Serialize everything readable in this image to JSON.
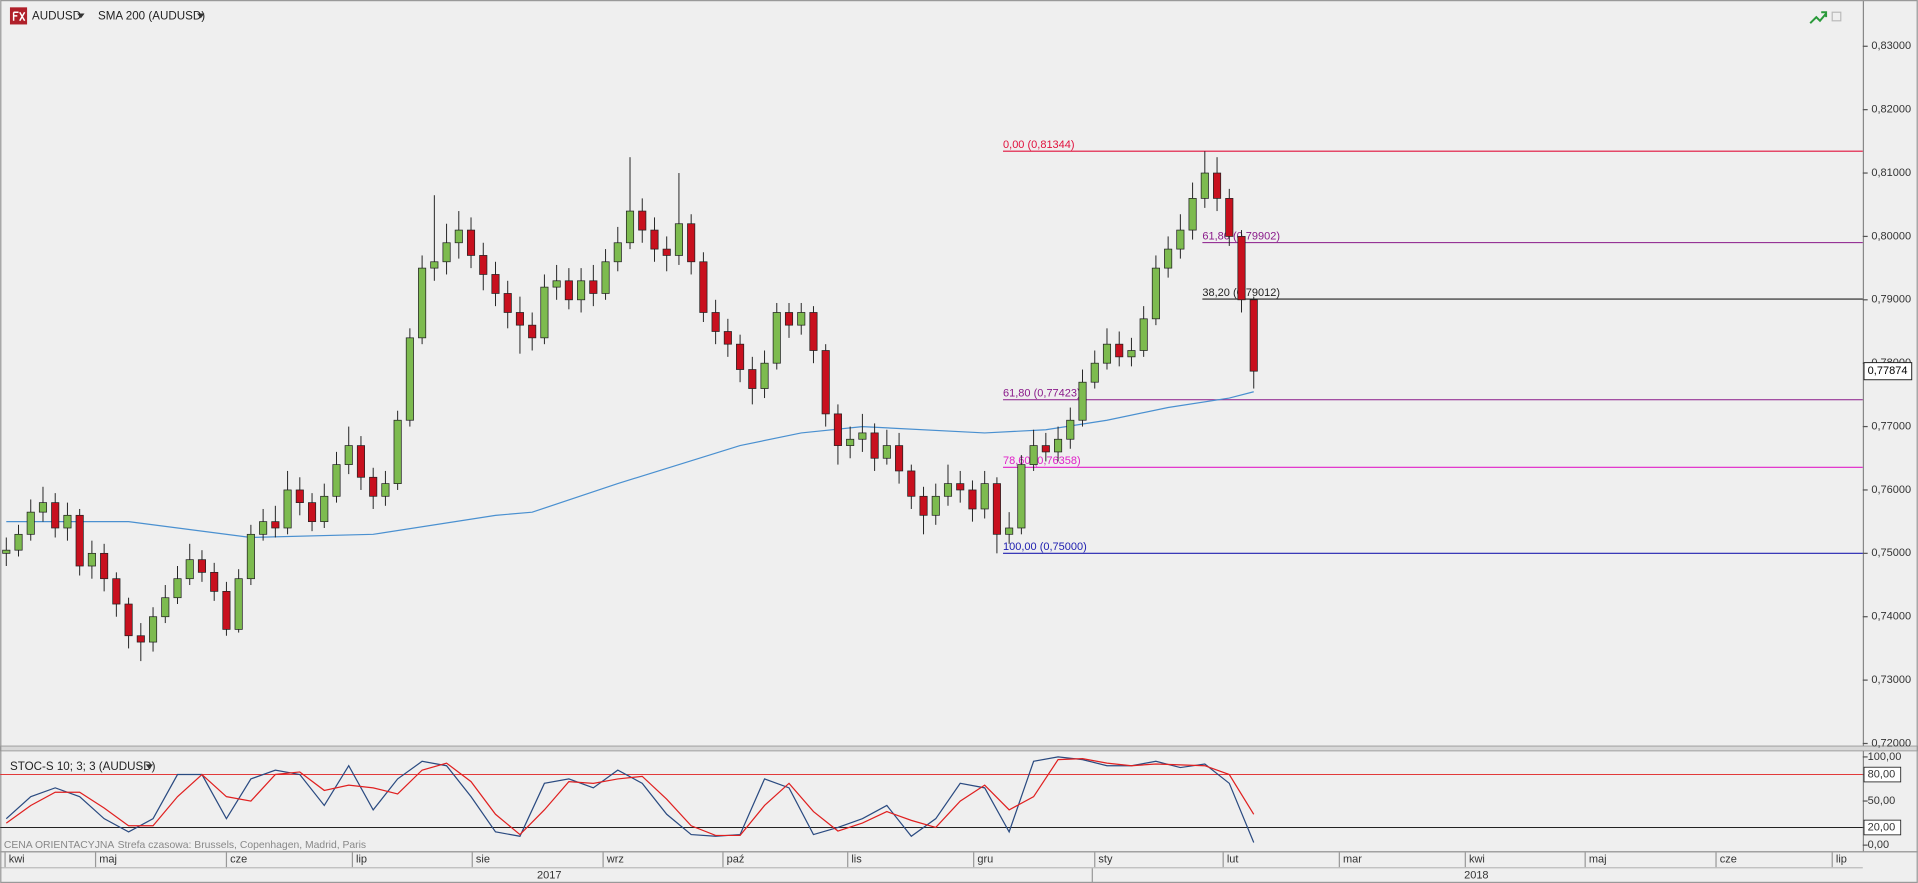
{
  "chart_data": [
    {
      "type": "candlestick",
      "xlim": [
        -0.5,
        151.8
      ],
      "ylim": [
        0.7196,
        0.8373
      ],
      "yticks": [
        {
          "value": 0.72,
          "label": "0,72000"
        },
        {
          "value": 0.73,
          "label": "0,73000"
        },
        {
          "value": 0.74,
          "label": "0,74000"
        },
        {
          "value": 0.75,
          "label": "0,75000"
        },
        {
          "value": 0.76,
          "label": "0,76000"
        },
        {
          "value": 0.77,
          "label": "0,77000"
        },
        {
          "value": 0.78,
          "label": "0,78000"
        },
        {
          "value": 0.79,
          "label": "0,79000"
        },
        {
          "value": 0.8,
          "label": "0,80000"
        },
        {
          "value": 0.81,
          "label": "0,81000"
        },
        {
          "value": 0.82,
          "label": "0,82000"
        },
        {
          "value": 0.83,
          "label": "0,83000"
        }
      ],
      "up_color": "#7dbb4f",
      "down_color": "#c8101e",
      "series": [
        {
          "name": "AUDUSD",
          "ohlc": [
            [
              0.75,
              0.7525,
              0.748,
              0.7505
            ],
            [
              0.7505,
              0.7545,
              0.7495,
              0.753
            ],
            [
              0.753,
              0.7585,
              0.752,
              0.7565
            ],
            [
              0.7565,
              0.7605,
              0.755,
              0.758
            ],
            [
              0.758,
              0.7595,
              0.7525,
              0.754
            ],
            [
              0.754,
              0.758,
              0.752,
              0.756
            ],
            [
              0.756,
              0.757,
              0.7465,
              0.748
            ],
            [
              0.748,
              0.752,
              0.746,
              0.75
            ],
            [
              0.75,
              0.7515,
              0.744,
              0.746
            ],
            [
              0.746,
              0.747,
              0.74,
              0.742
            ],
            [
              0.742,
              0.743,
              0.735,
              0.737
            ],
            [
              0.737,
              0.739,
              0.733,
              0.736
            ],
            [
              0.736,
              0.7415,
              0.7345,
              0.74
            ],
            [
              0.74,
              0.745,
              0.739,
              0.743
            ],
            [
              0.743,
              0.748,
              0.742,
              0.746
            ],
            [
              0.746,
              0.7515,
              0.745,
              0.749
            ],
            [
              0.749,
              0.7505,
              0.7455,
              0.747
            ],
            [
              0.747,
              0.7485,
              0.7425,
              0.744
            ],
            [
              0.744,
              0.7455,
              0.737,
              0.738
            ],
            [
              0.738,
              0.7475,
              0.7375,
              0.746
            ],
            [
              0.746,
              0.7545,
              0.745,
              0.753
            ],
            [
              0.753,
              0.757,
              0.752,
              0.755
            ],
            [
              0.755,
              0.7575,
              0.7525,
              0.754
            ],
            [
              0.754,
              0.763,
              0.753,
              0.76
            ],
            [
              0.76,
              0.762,
              0.756,
              0.758
            ],
            [
              0.758,
              0.7595,
              0.7535,
              0.755
            ],
            [
              0.755,
              0.761,
              0.754,
              0.759
            ],
            [
              0.759,
              0.766,
              0.758,
              0.764
            ],
            [
              0.764,
              0.77,
              0.7625,
              0.767
            ],
            [
              0.767,
              0.7685,
              0.76,
              0.762
            ],
            [
              0.762,
              0.7635,
              0.757,
              0.759
            ],
            [
              0.759,
              0.763,
              0.7575,
              0.761
            ],
            [
              0.761,
              0.7725,
              0.76,
              0.771
            ],
            [
              0.771,
              0.7855,
              0.77,
              0.784
            ],
            [
              0.784,
              0.797,
              0.783,
              0.795
            ],
            [
              0.795,
              0.8065,
              0.793,
              0.796
            ],
            [
              0.796,
              0.802,
              0.794,
              0.799
            ],
            [
              0.799,
              0.804,
              0.7965,
              0.801
            ],
            [
              0.801,
              0.803,
              0.795,
              0.797
            ],
            [
              0.797,
              0.799,
              0.7915,
              0.794
            ],
            [
              0.794,
              0.796,
              0.789,
              0.791
            ],
            [
              0.791,
              0.793,
              0.7855,
              0.788
            ],
            [
              0.788,
              0.7905,
              0.7815,
              0.786
            ],
            [
              0.786,
              0.788,
              0.782,
              0.784
            ],
            [
              0.784,
              0.794,
              0.783,
              0.792
            ],
            [
              0.792,
              0.7955,
              0.79,
              0.793
            ],
            [
              0.793,
              0.795,
              0.7885,
              0.79
            ],
            [
              0.79,
              0.795,
              0.788,
              0.793
            ],
            [
              0.793,
              0.7955,
              0.789,
              0.791
            ],
            [
              0.791,
              0.798,
              0.79,
              0.796
            ],
            [
              0.796,
              0.8015,
              0.7945,
              0.799
            ],
            [
              0.799,
              0.8125,
              0.798,
              0.804
            ],
            [
              0.804,
              0.806,
              0.799,
              0.801
            ],
            [
              0.801,
              0.803,
              0.796,
              0.798
            ],
            [
              0.798,
              0.8,
              0.7945,
              0.797
            ],
            [
              0.797,
              0.81,
              0.7955,
              0.802
            ],
            [
              0.802,
              0.8035,
              0.794,
              0.796
            ],
            [
              0.796,
              0.7975,
              0.7865,
              0.788
            ],
            [
              0.788,
              0.79,
              0.783,
              0.785
            ],
            [
              0.785,
              0.787,
              0.781,
              0.783
            ],
            [
              0.783,
              0.7845,
              0.777,
              0.779
            ],
            [
              0.779,
              0.781,
              0.7735,
              0.776
            ],
            [
              0.776,
              0.782,
              0.7745,
              0.78
            ],
            [
              0.78,
              0.7895,
              0.779,
              0.788
            ],
            [
              0.788,
              0.7895,
              0.784,
              0.786
            ],
            [
              0.786,
              0.7895,
              0.7845,
              0.788
            ],
            [
              0.788,
              0.789,
              0.78,
              0.782
            ],
            [
              0.782,
              0.783,
              0.77,
              0.772
            ],
            [
              0.772,
              0.7735,
              0.764,
              0.767
            ],
            [
              0.767,
              0.77,
              0.765,
              0.768
            ],
            [
              0.768,
              0.772,
              0.766,
              0.769
            ],
            [
              0.769,
              0.7705,
              0.763,
              0.765
            ],
            [
              0.765,
              0.7695,
              0.764,
              0.767
            ],
            [
              0.767,
              0.769,
              0.761,
              0.763
            ],
            [
              0.763,
              0.764,
              0.757,
              0.759
            ],
            [
              0.759,
              0.7605,
              0.753,
              0.756
            ],
            [
              0.756,
              0.761,
              0.7545,
              0.759
            ],
            [
              0.759,
              0.764,
              0.7575,
              0.761
            ],
            [
              0.761,
              0.763,
              0.758,
              0.76
            ],
            [
              0.76,
              0.7615,
              0.755,
              0.757
            ],
            [
              0.757,
              0.763,
              0.7555,
              0.761
            ],
            [
              0.761,
              0.762,
              0.75,
              0.753
            ],
            [
              0.753,
              0.7565,
              0.7515,
              0.754
            ],
            [
              0.754,
              0.7655,
              0.753,
              0.764
            ],
            [
              0.764,
              0.7695,
              0.763,
              0.767
            ],
            [
              0.767,
              0.769,
              0.7645,
              0.766
            ],
            [
              0.766,
              0.77,
              0.7645,
              0.768
            ],
            [
              0.768,
              0.773,
              0.7665,
              0.771
            ],
            [
              0.771,
              0.779,
              0.77,
              0.777
            ],
            [
              0.777,
              0.782,
              0.776,
              0.78
            ],
            [
              0.78,
              0.7855,
              0.779,
              0.783
            ],
            [
              0.783,
              0.785,
              0.7795,
              0.781
            ],
            [
              0.781,
              0.784,
              0.7795,
              0.782
            ],
            [
              0.782,
              0.789,
              0.781,
              0.787
            ],
            [
              0.787,
              0.797,
              0.786,
              0.795
            ],
            [
              0.795,
              0.8,
              0.7935,
              0.798
            ],
            [
              0.798,
              0.8035,
              0.7965,
              0.801
            ],
            [
              0.801,
              0.8085,
              0.7995,
              0.806
            ],
            [
              0.806,
              0.81344,
              0.8045,
              0.81
            ],
            [
              0.81,
              0.8125,
              0.804,
              0.806
            ],
            [
              0.806,
              0.8075,
              0.7985,
              0.8
            ],
            [
              0.8,
              0.801,
              0.788,
              0.79
            ],
            [
              0.79,
              0.7905,
              0.776,
              0.77874
            ]
          ]
        },
        {
          "name": "SMA 200 (AUDUSD)",
          "color": "#4a90d0",
          "x": [
            0,
            10,
            20,
            30,
            40,
            43,
            50,
            60,
            65,
            70,
            80,
            85,
            90,
            95,
            100,
            102
          ],
          "values": [
            0.755,
            0.755,
            0.7525,
            0.753,
            0.756,
            0.7565,
            0.761,
            0.767,
            0.769,
            0.77,
            0.769,
            0.7695,
            0.771,
            0.773,
            0.7745,
            0.7755
          ]
        }
      ],
      "last_price": {
        "value": 0.77874,
        "label": "0,77874"
      },
      "fibonacci": [
        {
          "label": "0,00 (0,81344)",
          "value": 0.81344,
          "color": "#e0103c"
        },
        {
          "label": "61,80 (0,79902)",
          "value": 0.79902,
          "color": "#8a1a8a"
        },
        {
          "label": "38,20 (0,79012)",
          "value": 0.79012,
          "color": "#222222"
        },
        {
          "label": "61,80 (0,77423)",
          "value": 0.77423,
          "color": "#8a1a8a"
        },
        {
          "label": "78,60 (0,76358)",
          "value": 0.76358,
          "color": "#e020c8"
        },
        {
          "label": "100,00 (0,75000)",
          "value": 0.75,
          "color": "#2020b0"
        }
      ]
    },
    {
      "type": "line",
      "title": "STOC-S 10; 3; 3 (AUDUSD)",
      "xlim": [
        -0.5,
        151.8
      ],
      "ylim": [
        -4.1,
        106.8
      ],
      "yticks": [
        {
          "value": 0,
          "label": "0,00"
        },
        {
          "value": 20,
          "label": "20,00"
        },
        {
          "value": 50,
          "label": "50,00"
        },
        {
          "value": 80,
          "label": "80,00"
        },
        {
          "value": 100,
          "label": "100,00"
        }
      ],
      "levels": [
        {
          "value": 80,
          "color": "#e02020"
        },
        {
          "value": 20,
          "color": "#222222"
        }
      ],
      "x": [
        0,
        2,
        4,
        6,
        8,
        10,
        12,
        14,
        16,
        18,
        20,
        22,
        24,
        26,
        28,
        30,
        32,
        34,
        36,
        38,
        40,
        42,
        44,
        46,
        48,
        50,
        52,
        54,
        56,
        58,
        60,
        62,
        64,
        66,
        68,
        70,
        72,
        74,
        76,
        78,
        80,
        82,
        84,
        86,
        88,
        90,
        92,
        94,
        96,
        98,
        100,
        102
      ],
      "series": [
        {
          "color": "#2a4a80",
          "values": [
            30,
            55,
            65,
            55,
            30,
            15,
            30,
            80,
            80,
            30,
            75,
            85,
            80,
            45,
            90,
            40,
            75,
            95,
            90,
            55,
            15,
            10,
            70,
            75,
            65,
            85,
            70,
            35,
            12,
            10,
            12,
            75,
            65,
            12,
            20,
            30,
            45,
            10,
            30,
            70,
            65,
            15,
            95,
            100,
            97,
            90,
            90,
            95,
            88,
            92,
            70,
            3
          ]
        },
        {
          "color": "#e02020",
          "values": [
            25,
            45,
            60,
            60,
            42,
            22,
            22,
            55,
            80,
            55,
            50,
            80,
            83,
            62,
            68,
            65,
            58,
            85,
            93,
            72,
            35,
            12,
            40,
            72,
            70,
            75,
            78,
            52,
            22,
            11,
            11,
            45,
            70,
            38,
            16,
            25,
            38,
            28,
            20,
            50,
            68,
            40,
            55,
            97,
            98,
            93,
            90,
            92,
            91,
            90,
            80,
            35
          ]
        }
      ]
    }
  ],
  "time_axis": {
    "months": [
      "kwi",
      "maj",
      "cze",
      "lip",
      "sie",
      "wrz",
      "paź",
      "lis",
      "gru",
      "sty",
      "lut",
      "mar",
      "kwi",
      "maj",
      "cze",
      "lip"
    ],
    "years": [
      "2017",
      "2018"
    ]
  },
  "footer": {
    "price_note": "CENA ORIENTACYJNA",
    "timezone": "Strefa czasowa: Brussels, Copenhagen, Madrid, Paris"
  }
}
